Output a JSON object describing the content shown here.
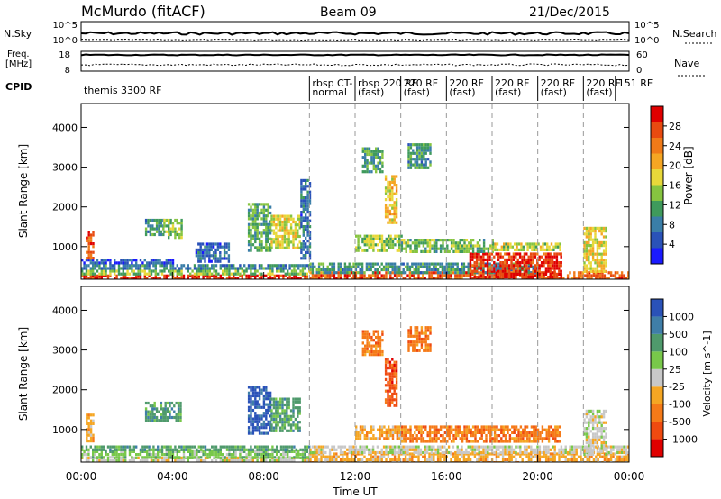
{
  "header": {
    "station": "McMurdo (fitACF)",
    "beam": "Beam 09",
    "date": "21/Dec/2015"
  },
  "top_panels": {
    "nsky_label": "N.Sky",
    "nsky_ticks": [
      "10^5",
      "10^0"
    ],
    "nsearch_label": "N.Search",
    "nsearch_ticks": [
      "10^5",
      "10^0"
    ],
    "freq_label_line1": "Freq.",
    "freq_label_line2": "[MHz]",
    "freq_ticks": [
      "18",
      "8"
    ],
    "nave_label": "Nave",
    "nave_ticks": [
      "60",
      "0"
    ],
    "cpid_label": "CPID",
    "cpid_segments": [
      {
        "start_hour": 0.0,
        "text": "themis 3300 RF"
      },
      {
        "start_hour": 10.0,
        "text": "rbsp CT-"
      },
      {
        "start_hour": 10.0,
        "text": "normal"
      },
      {
        "start_hour": 12.0,
        "text": "rbsp 220 RF"
      },
      {
        "start_hour": 12.0,
        "text": "(fast)"
      },
      {
        "start_hour": 14.0,
        "text": "220 RF"
      },
      {
        "start_hour": 14.0,
        "text": "(fast)"
      },
      {
        "start_hour": 16.0,
        "text": "220 RF"
      },
      {
        "start_hour": 16.0,
        "text": "(fast)"
      },
      {
        "start_hour": 18.0,
        "text": "220 RF"
      },
      {
        "start_hour": 18.0,
        "text": "(fast)"
      },
      {
        "start_hour": 20.0,
        "text": "220 RF"
      },
      {
        "start_hour": 20.0,
        "text": "(fast)"
      },
      {
        "start_hour": 22.0,
        "text": "220 RF"
      },
      {
        "start_hour": 22.0,
        "text": "(fast)"
      },
      {
        "start_hour": 23.4,
        "text": "151 RF"
      }
    ]
  },
  "chart_data": [
    {
      "type": "heatmap",
      "quantity": "Power",
      "colorbar_label": "Power [dB]",
      "ylabel": "Slant Range [km]",
      "ylim": [
        180,
        4600
      ],
      "yticks": [
        1000,
        2000,
        3000,
        4000
      ],
      "xlim": [
        0,
        24
      ],
      "colorbar_ticks": [
        4,
        8,
        12,
        16,
        20,
        24,
        28
      ],
      "colorbar_range": [
        0,
        32
      ],
      "colorscale": [
        "#1a1aff",
        "#2a52b8",
        "#3a7ea8",
        "#3f9a5c",
        "#86c440",
        "#e8d83a",
        "#f5a623",
        "#f07a18",
        "#e84a10",
        "#e00000"
      ],
      "cpid_change_hours": [
        10,
        12,
        14,
        16,
        18,
        20,
        22
      ],
      "regions": [
        {
          "t0": 0.0,
          "t1": 10.0,
          "r0": 200,
          "r1": 300,
          "v": 29
        },
        {
          "t0": 0.0,
          "t1": 10.0,
          "r0": 300,
          "r1": 420,
          "v": 14
        },
        {
          "t0": 0.0,
          "t1": 10.0,
          "r0": 420,
          "r1": 560,
          "v": 9
        },
        {
          "t0": 0.0,
          "t1": 4.0,
          "r0": 560,
          "r1": 700,
          "v": 5
        },
        {
          "t0": 0.2,
          "t1": 0.5,
          "r0": 700,
          "r1": 1400,
          "v": 27
        },
        {
          "t0": 2.8,
          "t1": 3.6,
          "r0": 1300,
          "r1": 1700,
          "v": 10
        },
        {
          "t0": 3.6,
          "t1": 4.4,
          "r0": 1200,
          "r1": 1700,
          "v": 14
        },
        {
          "t0": 5.0,
          "t1": 6.5,
          "r0": 600,
          "r1": 1100,
          "v": 6
        },
        {
          "t0": 7.3,
          "t1": 8.3,
          "r0": 900,
          "r1": 2100,
          "v": 12
        },
        {
          "t0": 8.3,
          "t1": 9.6,
          "r0": 1000,
          "r1": 1800,
          "v": 17
        },
        {
          "t0": 9.6,
          "t1": 10.0,
          "r0": 700,
          "r1": 2700,
          "v": 7
        },
        {
          "t0": 10.0,
          "t1": 24.0,
          "r0": 200,
          "r1": 380,
          "v": 26
        },
        {
          "t0": 10.0,
          "t1": 20.0,
          "r0": 380,
          "r1": 600,
          "v": 10
        },
        {
          "t0": 17.0,
          "t1": 21.0,
          "r0": 200,
          "r1": 850,
          "v": 29
        },
        {
          "t0": 12.0,
          "t1": 14.0,
          "r0": 900,
          "r1": 1300,
          "v": 15
        },
        {
          "t0": 14.0,
          "t1": 18.0,
          "r0": 900,
          "r1": 1200,
          "v": 13
        },
        {
          "t0": 18.0,
          "t1": 21.0,
          "r0": 900,
          "r1": 1100,
          "v": 16
        },
        {
          "t0": 13.3,
          "t1": 13.8,
          "r0": 1600,
          "r1": 2800,
          "v": 19
        },
        {
          "t0": 12.3,
          "t1": 13.2,
          "r0": 2900,
          "r1": 3500,
          "v": 11
        },
        {
          "t0": 14.3,
          "t1": 15.3,
          "r0": 3000,
          "r1": 3600,
          "v": 10
        },
        {
          "t0": 22.0,
          "t1": 23.0,
          "r0": 350,
          "r1": 1500,
          "v": 18
        }
      ]
    },
    {
      "type": "heatmap",
      "quantity": "Velocity",
      "colorbar_label": "Velocity [m s^-1]",
      "ylabel": "Slant Range [km]",
      "xlabel": "Time UT",
      "ylim": [
        180,
        4600
      ],
      "yticks": [
        1000,
        2000,
        3000,
        4000
      ],
      "xlim": [
        0,
        24
      ],
      "xticks": [
        "00:00",
        "04:00",
        "08:00",
        "12:00",
        "16:00",
        "20:00",
        "00:00"
      ],
      "xtick_hours": [
        0,
        4,
        8,
        12,
        16,
        20,
        24
      ],
      "colorbar_ticks": [
        "-1000",
        "-500",
        "-100",
        "-25",
        "25",
        "100",
        "500",
        "1000"
      ],
      "colorscale": [
        "#e00000",
        "#ef4a10",
        "#f57a18",
        "#f5a623",
        "#c8c8c8",
        "#78c84a",
        "#4f9a6c",
        "#3f7ea8",
        "#2a52b8"
      ],
      "cpid_change_hours": [
        10,
        12,
        14,
        16,
        18,
        20,
        22
      ],
      "regions": [
        {
          "t0": 0.0,
          "t1": 10.0,
          "r0": 200,
          "r1": 320,
          "v": 4
        },
        {
          "t0": 0.0,
          "t1": 10.0,
          "r0": 320,
          "r1": 480,
          "v": 5
        },
        {
          "t0": 0.0,
          "t1": 10.0,
          "r0": 480,
          "r1": 600,
          "v": 6
        },
        {
          "t0": 0.2,
          "t1": 0.5,
          "r0": 700,
          "r1": 1400,
          "v": 3
        },
        {
          "t0": 2.8,
          "t1": 4.4,
          "r0": 1200,
          "r1": 1700,
          "v": 6
        },
        {
          "t0": 7.3,
          "t1": 8.3,
          "r0": 900,
          "r1": 2100,
          "v": 8
        },
        {
          "t0": 8.3,
          "t1": 9.6,
          "r0": 1000,
          "r1": 1800,
          "v": 6
        },
        {
          "t0": 10.0,
          "t1": 24.0,
          "r0": 200,
          "r1": 420,
          "v": 3
        },
        {
          "t0": 10.0,
          "t1": 24.0,
          "r0": 420,
          "r1": 600,
          "v": 4
        },
        {
          "t0": 12.0,
          "t1": 14.0,
          "r0": 800,
          "r1": 1100,
          "v": 3
        },
        {
          "t0": 14.0,
          "t1": 21.0,
          "r0": 700,
          "r1": 1100,
          "v": 2
        },
        {
          "t0": 13.3,
          "t1": 13.8,
          "r0": 1600,
          "r1": 2800,
          "v": 1
        },
        {
          "t0": 12.3,
          "t1": 13.2,
          "r0": 2900,
          "r1": 3500,
          "v": 2
        },
        {
          "t0": 14.3,
          "t1": 15.3,
          "r0": 3000,
          "r1": 3600,
          "v": 2
        },
        {
          "t0": 22.0,
          "t1": 23.0,
          "r0": 350,
          "r1": 1500,
          "v": 4
        }
      ]
    }
  ]
}
